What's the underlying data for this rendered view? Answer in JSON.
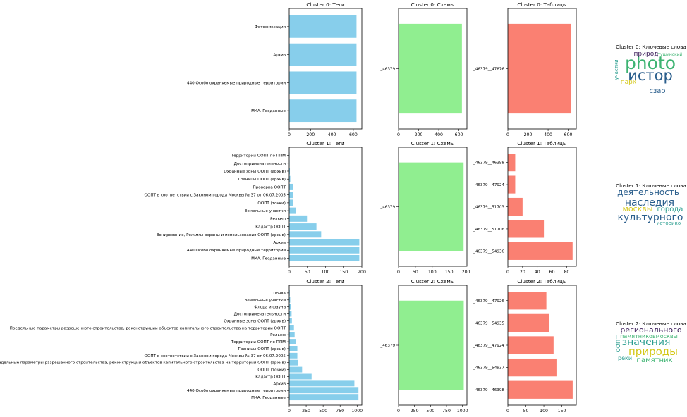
{
  "chart_data": [
    {
      "type": "bar",
      "orientation": "horizontal",
      "title": "Cluster 0: Теги",
      "color": "#87ceeb",
      "categories": [
        "МКА. Геоданные",
        "440 Особо охраняемые природные территории",
        "Архив",
        "Фотофиксация"
      ],
      "values": [
        630,
        630,
        630,
        630
      ],
      "xlim": [
        0,
        680
      ],
      "xticks": [
        0,
        200,
        400,
        600
      ]
    },
    {
      "type": "bar",
      "orientation": "horizontal",
      "title": "Cluster 0: Схемы",
      "color": "#90ee90",
      "categories": [
        "_46379"
      ],
      "values": [
        630
      ],
      "xlim": [
        0,
        680
      ],
      "xticks": [
        0,
        200,
        400,
        600
      ]
    },
    {
      "type": "bar",
      "orientation": "horizontal",
      "title": "Cluster 0: Таблицы",
      "color": "#fa8072",
      "categories": [
        "_46379__47876"
      ],
      "values": [
        630
      ],
      "xlim": [
        0,
        680
      ],
      "xticks": [
        0,
        200,
        400,
        600
      ]
    },
    {
      "type": "wordcloud",
      "title": "Cluster 0: Ключевые слова",
      "words": [
        {
          "text": "photo",
          "color": "#3cb371"
        },
        {
          "text": "истор",
          "color": "#2a5e8c"
        },
        {
          "text": "природ",
          "color": "#3b1c5a"
        },
        {
          "text": "тушинский",
          "color": "#3cb371"
        },
        {
          "text": "сзао",
          "color": "#2a5e8c"
        },
        {
          "text": "парк",
          "color": "#d4c81a"
        },
        {
          "text": "участки",
          "color": "#2a9d8f"
        }
      ]
    },
    {
      "type": "bar",
      "orientation": "horizontal",
      "title": "Cluster 1: Теги",
      "color": "#87ceeb",
      "categories": [
        "МКА. Геоданные",
        "440 Особо охраняемые природные территории",
        "Архив",
        "Зонирование, Режимы охраны и использования ООПТ (архив)",
        "Кадастр ООПТ",
        "Рельеф",
        "Земельные участки",
        "ООПТ (точки)",
        "ООПТ в соответствии с Законом города Москвы № 37 от 06.07.2005",
        "Проверка ООПТ",
        "Границы ООПТ (архив)",
        "Охранные зоны ООПТ (архив)",
        "Достопримечательности",
        "Территории ООПТ по ППМ"
      ],
      "values": [
        193,
        193,
        193,
        88,
        75,
        49,
        18,
        11,
        11,
        10,
        3,
        2,
        1,
        1
      ],
      "xlim": [
        0,
        200
      ],
      "xticks": [
        0,
        50,
        100,
        150,
        200
      ]
    },
    {
      "type": "bar",
      "orientation": "horizontal",
      "title": "Cluster 1: Схемы",
      "color": "#90ee90",
      "categories": [
        "_46379"
      ],
      "values": [
        193
      ],
      "xlim": [
        0,
        203
      ],
      "xticks": [
        0,
        50,
        100,
        150,
        200
      ]
    },
    {
      "type": "bar",
      "orientation": "horizontal",
      "title": "Cluster 1: Таблицы",
      "color": "#fa8072",
      "categories": [
        "_46379__54936",
        "_46379__51706",
        "_46379__51703",
        "_46379__47924",
        "_46379__46398"
      ],
      "values": [
        88,
        49,
        20,
        10,
        10
      ],
      "xlim": [
        0,
        93
      ],
      "xticks": [
        0,
        20,
        40,
        60,
        80
      ]
    },
    {
      "type": "wordcloud",
      "title": "Cluster 1: Ключевые слова",
      "words": [
        {
          "text": "деятельность",
          "color": "#2a5e8c"
        },
        {
          "text": "наследия",
          "color": "#2a5e8c"
        },
        {
          "text": "москвы",
          "color": "#d4c81a"
        },
        {
          "text": "города",
          "color": "#2a9d8f"
        },
        {
          "text": "культурного",
          "color": "#2a5e8c"
        },
        {
          "text": "историко",
          "color": "#2a9d8f"
        }
      ]
    },
    {
      "type": "bar",
      "orientation": "horizontal",
      "title": "Cluster 2: Теги",
      "color": "#87ceeb",
      "categories": [
        "МКА. Геоданные",
        "440 Особо охраняемые природные территории",
        "Архив",
        "Кадастр ООПТ",
        "ООПТ (точки)",
        "Предельные параметры разрешенного строительства, реконструкции объектов капитального строительства на территории ООПТ (архив)",
        "ООПТ в соответствии с Законом города Москвы № 37 от 06.07.2005",
        "Границы ООПТ (архив)",
        "Территории ООПТ по ППМ",
        "Рельеф",
        "Предельные параметры разрешенного строительства, реконструкции объектов капитального строительства на территории ООПТ",
        "Охранные зоны ООПТ (архив)",
        "Достопримечательности",
        "Флора и фауна",
        "Земельные участки",
        "Почва"
      ],
      "values": [
        1020,
        1020,
        960,
        330,
        190,
        130,
        120,
        120,
        100,
        80,
        70,
        40,
        35,
        30,
        15,
        8
      ],
      "xlim": [
        0,
        1070
      ],
      "xticks": [
        0,
        250,
        500,
        750,
        1000
      ]
    },
    {
      "type": "bar",
      "orientation": "horizontal",
      "title": "Cluster 2: Схемы",
      "color": "#90ee90",
      "categories": [
        "_46379"
      ],
      "values": [
        1020
      ],
      "xlim": [
        0,
        1070
      ],
      "xticks": [
        0,
        250,
        500,
        750,
        1000
      ]
    },
    {
      "type": "bar",
      "orientation": "horizontal",
      "title": "Cluster 2: Таблицы",
      "color": "#fa8072",
      "categories": [
        "_46379__46398",
        "_46379__54937",
        "_46379__47924",
        "_46379__54935",
        "_46379__47926"
      ],
      "values": [
        180,
        135,
        127,
        115,
        107
      ],
      "xlim": [
        0,
        190
      ],
      "xticks": [
        0,
        50,
        100,
        150
      ]
    },
    {
      "type": "wordcloud",
      "title": "Cluster 2: Ключевые слова",
      "words": [
        {
          "text": "регионального",
          "color": "#3b1c5a"
        },
        {
          "text": "памятниковмосквы",
          "color": "#3cb371"
        },
        {
          "text": "значения",
          "color": "#2a9d8f"
        },
        {
          "text": "природы",
          "color": "#d4c81a"
        },
        {
          "text": "оопт",
          "color": "#2a9d8f"
        },
        {
          "text": "реки",
          "color": "#2a9d8f"
        },
        {
          "text": "памятник",
          "color": "#3cb371"
        }
      ]
    }
  ]
}
